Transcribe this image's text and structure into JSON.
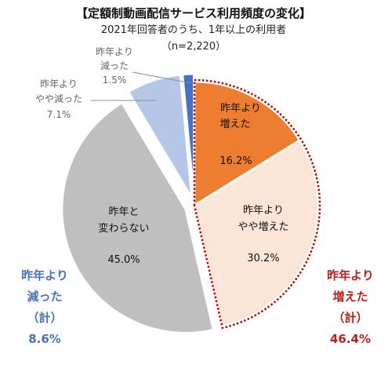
{
  "chart_data": {
    "type": "pie",
    "title": "【定額制動画配信サービス利用頻度の変化】",
    "subtitle": "2021年回答者のうち、1年以上の利用者",
    "sample": "（n=2,220）",
    "slices": [
      {
        "name_lines": [
          "昨年より",
          "増えた"
        ],
        "value": 16.2,
        "label": "16.2%",
        "color": "#ED7D31"
      },
      {
        "name_lines": [
          "昨年より",
          "やや増えた"
        ],
        "value": 30.2,
        "label": "30.2%",
        "color": "#FBE5D6"
      },
      {
        "name_lines": [
          "昨年と",
          "変わらない"
        ],
        "value": 45.0,
        "label": "45.0%",
        "color": "#BFBFBF"
      },
      {
        "name_lines": [
          "昨年より",
          "やや減った"
        ],
        "value": 7.1,
        "label": "7.1%",
        "color": "#B4C7E7"
      },
      {
        "name_lines": [
          "昨年より",
          "減った"
        ],
        "value": 1.5,
        "label": "1.5%",
        "color": "#4472C4"
      }
    ],
    "totals": {
      "decreased": {
        "lines": [
          "昨年より",
          "減った",
          "（計）"
        ],
        "value": "8.6%",
        "color": "#4A72B8"
      },
      "increased": {
        "lines": [
          "昨年より",
          "増えた",
          "（計）"
        ],
        "value": "46.4%",
        "color": "#B22222"
      }
    }
  }
}
